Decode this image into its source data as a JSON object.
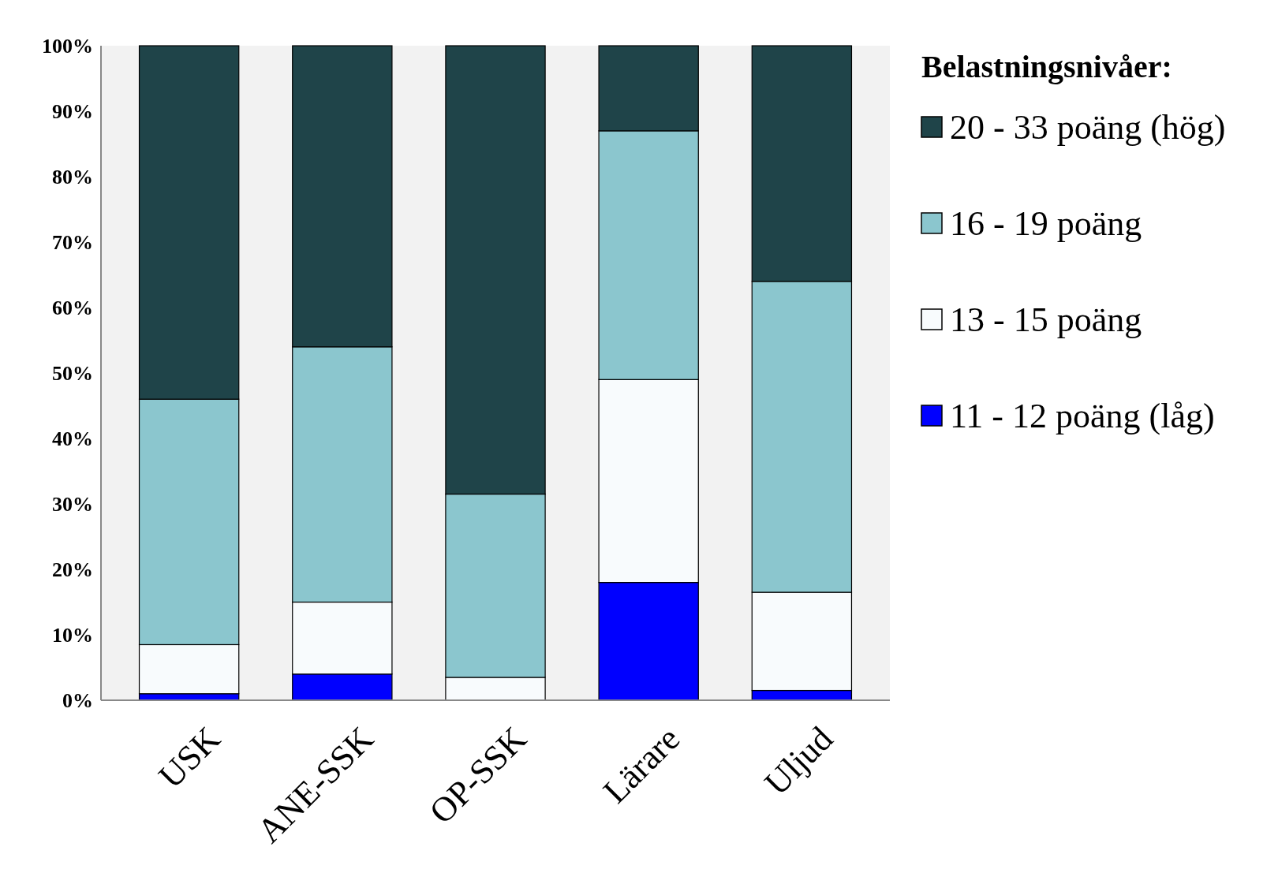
{
  "chart_data": {
    "type": "bar",
    "stacked": true,
    "legend_title": "Belastningsnivåer:",
    "legend": "right",
    "categories": [
      "USK",
      "ANE-SSK",
      "OP-SSK",
      "Lärare",
      "Uljud"
    ],
    "series": [
      {
        "name": "11 - 12 poäng (låg)",
        "color": "#0000ff",
        "values": [
          1,
          4,
          0,
          18,
          1.5
        ]
      },
      {
        "name": "13 - 15 poäng",
        "color": "#f8fbfd",
        "values": [
          7.5,
          11,
          3.5,
          31,
          15
        ]
      },
      {
        "name": "16 - 19 poäng",
        "color": "#8bc6ce",
        "values": [
          37.5,
          39,
          28,
          38,
          47.5
        ]
      },
      {
        "name": "20 - 33 poäng (hög)",
        "color": "#1f4449",
        "values": [
          54,
          46,
          68.5,
          13,
          36
        ]
      }
    ],
    "ylim": [
      0,
      100
    ],
    "yticks": [
      {
        "value": 0,
        "label": "0%"
      },
      {
        "value": 10,
        "label": "10%"
      },
      {
        "value": 20,
        "label": "20%"
      },
      {
        "value": 30,
        "label": "30%"
      },
      {
        "value": 40,
        "label": "40%"
      },
      {
        "value": 50,
        "label": "50%"
      },
      {
        "value": 60,
        "label": "60%"
      },
      {
        "value": 70,
        "label": "70%"
      },
      {
        "value": 80,
        "label": "80%"
      },
      {
        "value": 90,
        "label": "90%"
      },
      {
        "value": 100,
        "label": "100%"
      }
    ]
  }
}
